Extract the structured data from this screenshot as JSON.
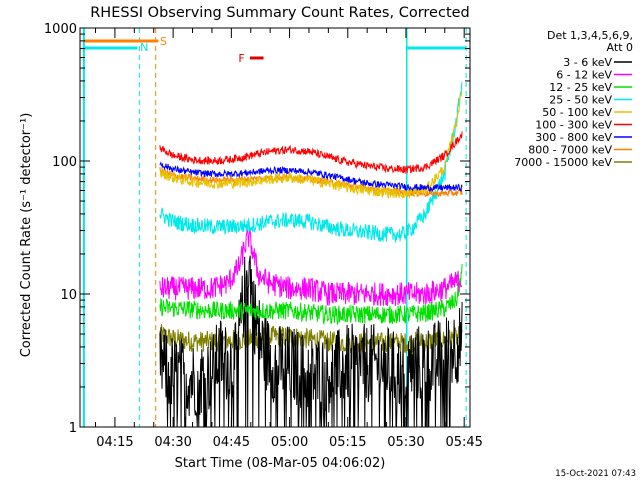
{
  "chart_data": {
    "type": "line",
    "title": "RHESSI Observing Summary Count Rates, Corrected",
    "xlabel": "Start Time (08-Mar-05 04:06:02)",
    "ylabel": "Corrected Count Rate (s⁻¹ detector⁻¹)",
    "y_scale": "log",
    "ylim": [
      1,
      1000
    ],
    "xlim_minutes": [
      0,
      41
    ],
    "x_tick_labels": [
      {
        "label": "04:15",
        "min": 15
      },
      {
        "label": "04:30",
        "min": 30
      },
      {
        "label": "04:45",
        "min": 45
      },
      {
        "label": "05:00",
        "min": 60
      },
      {
        "label": "05:15",
        "min": 75
      },
      {
        "label": "05:30",
        "min": 90
      },
      {
        "label": "05:45",
        "min": 105
      }
    ],
    "y_tick_labels": [
      {
        "label": "1",
        "value": 1
      },
      {
        "label": "10",
        "value": 10
      },
      {
        "label": "100",
        "value": 100
      },
      {
        "label": "1000",
        "value": 1000
      }
    ],
    "legend_header": [
      "Det 1,3,4,5,6,9,",
      "Att 0"
    ],
    "legend_placement": "right",
    "timestamp": "15-Oct-2021 07:43",
    "annotations": {
      "saa_flag": "S",
      "night_flag": "N",
      "flare_flag": "F"
    },
    "series": [
      {
        "name": "3 - 6 keV",
        "color": "#000000",
        "x": [
          26.6,
          30,
          35,
          40,
          42,
          44,
          46,
          48,
          49.5,
          51,
          53,
          56,
          60,
          65,
          70,
          75,
          80,
          85,
          88,
          92,
          96,
          100,
          104.5
        ],
        "values": [
          3,
          2.5,
          2.3,
          2.5,
          3.5,
          3,
          3,
          8,
          18,
          7,
          4,
          3,
          3,
          2.5,
          2.5,
          3,
          3,
          3,
          2.5,
          3,
          3,
          3.5,
          4.5
        ]
      },
      {
        "name": "6 - 12 keV",
        "color": "#ff00ff",
        "x": [
          26.6,
          30,
          35,
          40,
          44,
          47,
          48.5,
          49.5,
          50.5,
          52,
          55,
          60,
          65,
          70,
          75,
          80,
          85,
          90,
          95,
          100,
          104.5
        ],
        "values": [
          11,
          11,
          11,
          11,
          12,
          16,
          23,
          27,
          21,
          14,
          12,
          11,
          11,
          10,
          10,
          10,
          10,
          10,
          10,
          11,
          13
        ]
      },
      {
        "name": "12 - 25 keV",
        "color": "#00e000",
        "x": [
          26.6,
          30,
          40,
          50,
          60,
          70,
          80,
          90,
          95,
          100,
          103,
          104.5
        ],
        "values": [
          8,
          7.8,
          7.5,
          7.5,
          7.5,
          7,
          7,
          7,
          7.2,
          7.8,
          9,
          15
        ]
      },
      {
        "name": "25 - 50 keV",
        "color": "#00e8e8",
        "x": [
          26.6,
          30,
          35,
          40,
          45,
          50,
          55,
          60,
          65,
          70,
          75,
          80,
          85,
          89,
          91,
          95,
          100,
          103,
          104.5
        ],
        "values": [
          40,
          35,
          33,
          32,
          32,
          33,
          35,
          36,
          35,
          32,
          30,
          29,
          28,
          28,
          30,
          40,
          80,
          200,
          400
        ]
      },
      {
        "name": "50 - 100 keV",
        "color": "#e8c000",
        "x": [
          26.6,
          30,
          35,
          40,
          45,
          50,
          55,
          60,
          65,
          70,
          75,
          80,
          85,
          90,
          95,
          100,
          103,
          104.5
        ],
        "values": [
          82,
          75,
          70,
          68,
          68,
          70,
          73,
          75,
          72,
          68,
          63,
          60,
          58,
          57,
          60,
          90,
          200,
          350
        ]
      },
      {
        "name": "100 - 300 keV",
        "color": "#ff0000",
        "x": [
          26.6,
          30,
          35,
          40,
          45,
          50,
          55,
          60,
          65,
          70,
          75,
          80,
          85,
          90,
          95,
          100,
          104.5
        ],
        "values": [
          125,
          110,
          102,
          100,
          103,
          110,
          118,
          122,
          118,
          107,
          98,
          92,
          88,
          86,
          90,
          110,
          160
        ]
      },
      {
        "name": "300 - 800 keV",
        "color": "#0000ff",
        "x": [
          26.6,
          30,
          35,
          40,
          45,
          50,
          55,
          60,
          65,
          70,
          75,
          80,
          85,
          90,
          95,
          100,
          104.5
        ],
        "values": [
          95,
          87,
          82,
          80,
          80,
          82,
          85,
          85,
          83,
          78,
          73,
          68,
          66,
          64,
          63,
          63,
          63
        ]
      },
      {
        "name": "800 - 7000 keV",
        "color": "#ff8000",
        "x": [
          26.6,
          30,
          35,
          40,
          45,
          50,
          55,
          60,
          65,
          70,
          75,
          80,
          85,
          90,
          95,
          100,
          104.5
        ],
        "values": [
          85,
          78,
          74,
          72,
          72,
          73,
          75,
          76,
          73,
          70,
          66,
          63,
          60,
          58,
          57,
          57,
          58
        ]
      },
      {
        "name": "7000 - 15000 keV",
        "color": "#808000",
        "x": [
          26.6,
          30,
          35,
          40,
          45,
          50,
          55,
          60,
          65,
          70,
          75,
          80,
          85,
          90,
          95,
          100,
          104.5
        ],
        "values": [
          5,
          4.6,
          4.4,
          4.4,
          4.5,
          4.6,
          4.8,
          4.8,
          4.6,
          4.4,
          4.3,
          4.3,
          4.3,
          4.3,
          4.4,
          4.5,
          4.8
        ]
      }
    ]
  }
}
